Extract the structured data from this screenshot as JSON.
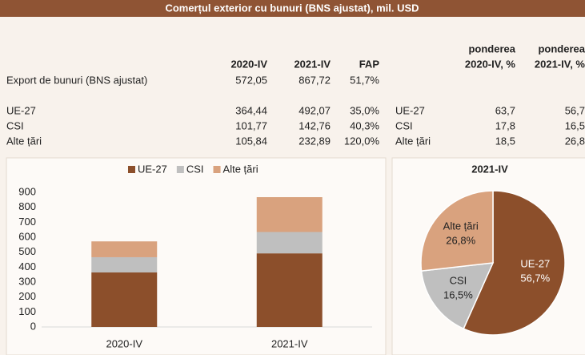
{
  "title": "Comerțul exterior cu bunuri (BNS ajustat), mil. USD",
  "table": {
    "header": [
      "2020-IV",
      "2021-IV",
      "FAP"
    ],
    "share_header": [
      [
        "ponderea",
        "2020-IV, %"
      ],
      [
        "ponderea",
        "2021-IV, %"
      ]
    ],
    "rows": [
      [
        "Export de bunuri (BNS ajustat)",
        "572,05",
        "867,72",
        "51,7%"
      ],
      [
        "UE-27",
        "364,44",
        "492,07",
        "35,0%"
      ],
      [
        "CSI",
        "101,77",
        "142,76",
        "40,3%"
      ],
      [
        "Alte țări",
        "105,84",
        "232,89",
        "120,0%"
      ]
    ],
    "share_rows": [
      [
        "UE-27",
        "63,7",
        "56,7"
      ],
      [
        "CSI",
        "17,8",
        "16,5"
      ],
      [
        "Alte țări",
        "18,5",
        "26,8"
      ]
    ]
  },
  "chart_data": [
    {
      "type": "bar",
      "stacked": true,
      "legend": "top",
      "categories": [
        "2020-IV",
        "2021-IV"
      ],
      "series": [
        {
          "name": "UE-27",
          "color": "#8c4f2b",
          "values": [
            364.44,
            492.07
          ]
        },
        {
          "name": "CSI",
          "color": "#bfbfbf",
          "values": [
            101.77,
            142.76
          ]
        },
        {
          "name": "Alte țări",
          "color": "#d9a27e",
          "values": [
            105.84,
            232.89
          ]
        }
      ],
      "ylim": [
        0,
        900
      ],
      "yticks": [
        0,
        100,
        200,
        300,
        400,
        500,
        600,
        700,
        800,
        900
      ]
    },
    {
      "type": "pie",
      "title": "2021-IV",
      "categories": [
        "UE-27",
        "CSI",
        "Alte țări"
      ],
      "values": [
        56.7,
        16.5,
        26.8
      ],
      "value_labels": [
        "56,7%",
        "16,5%",
        "26,8%"
      ],
      "colors": [
        "#8c4f2b",
        "#bfbfbf",
        "#d9a27e"
      ]
    }
  ]
}
